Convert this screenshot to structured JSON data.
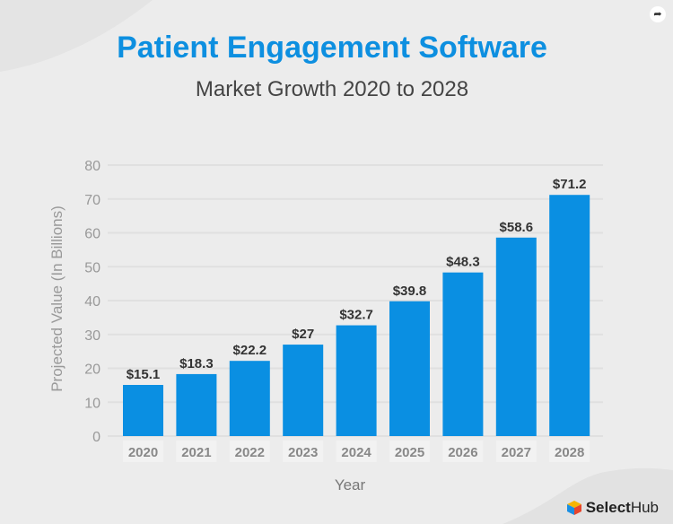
{
  "header": {
    "title": "Patient Engagement Software",
    "subtitle": "Market Growth 2020 to 2028"
  },
  "brand": {
    "name_bold": "Select",
    "name_regular": "Hub"
  },
  "share_icon": "share-arrow-icon",
  "colors": {
    "bar": "#0a8fe2",
    "title": "#0d8fe0"
  },
  "chart_data": {
    "type": "bar",
    "title": "Patient Engagement Software",
    "subtitle": "Market Growth 2020 to 2028",
    "xlabel": "Year",
    "ylabel": "Projected Value (In Billions)",
    "ylim": [
      0,
      80
    ],
    "yticks": [
      0,
      10,
      20,
      30,
      40,
      50,
      60,
      70,
      80
    ],
    "grid": true,
    "categories": [
      "2020",
      "2021",
      "2022",
      "2023",
      "2024",
      "2025",
      "2026",
      "2027",
      "2028"
    ],
    "values": [
      15.1,
      18.3,
      22.2,
      27,
      32.7,
      39.8,
      48.3,
      58.6,
      71.2
    ],
    "data_labels": [
      "$15.1",
      "$18.3",
      "$22.2",
      "$27",
      "$32.7",
      "$39.8",
      "$48.3",
      "$58.6",
      "$71.2"
    ]
  }
}
